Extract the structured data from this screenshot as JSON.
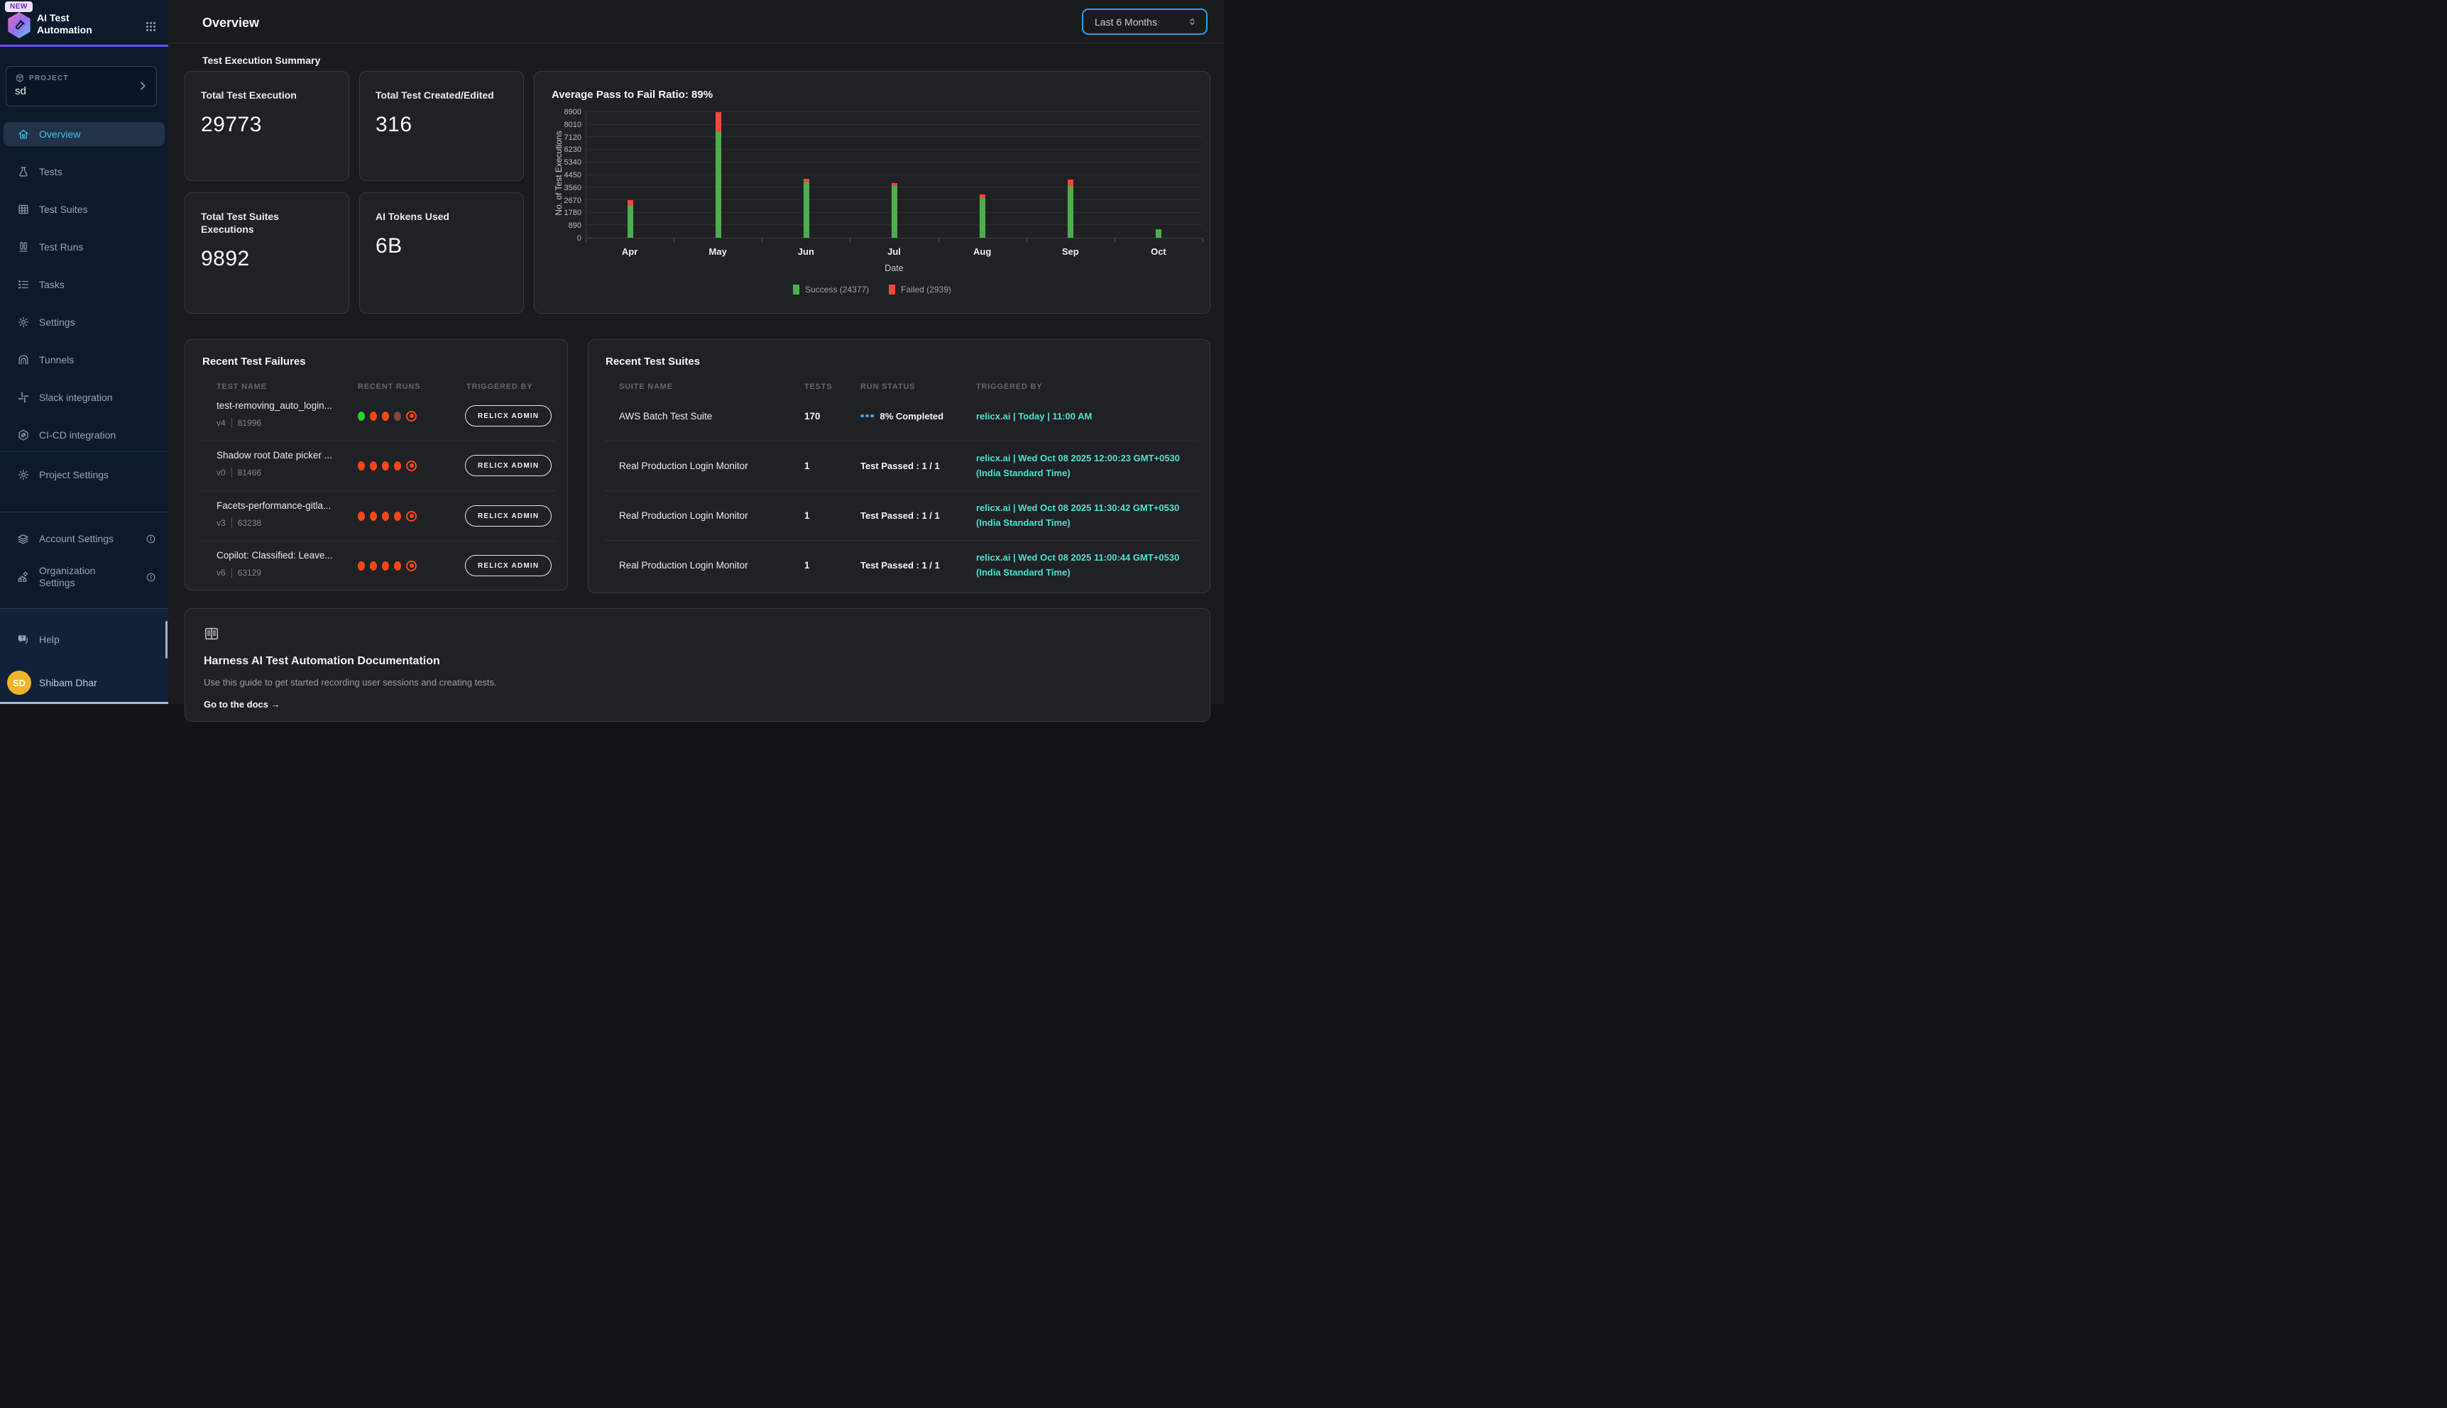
{
  "app": {
    "badge": "NEW",
    "title_line1": "AI Test",
    "title_line2": "Automation"
  },
  "project": {
    "label": "PROJECT",
    "name": "sd"
  },
  "nav": {
    "items": [
      {
        "label": "Overview",
        "active": true
      },
      {
        "label": "Tests"
      },
      {
        "label": "Test Suites"
      },
      {
        "label": "Test Runs"
      },
      {
        "label": "Tasks"
      },
      {
        "label": "Settings"
      },
      {
        "label": "Tunnels"
      },
      {
        "label": "Slack integration"
      },
      {
        "label": "CI-CD integration"
      }
    ],
    "secondary": [
      {
        "label": "Project Settings"
      }
    ],
    "account": [
      {
        "label": "Account Settings"
      },
      {
        "label": "Organization Settings"
      }
    ],
    "help": "Help"
  },
  "user": {
    "initials": "SD",
    "name": "Shibam Dhar"
  },
  "header": {
    "title": "Overview",
    "time_filter": "Last 6 Months",
    "section_title": "Test Execution Summary"
  },
  "summary_cards": [
    {
      "label": "Total Test Execution",
      "value": "29773"
    },
    {
      "label": "Total Test Created/Edited",
      "value": "316"
    },
    {
      "label": "Total Test Suites Executions",
      "value": "9892"
    },
    {
      "label": "AI Tokens Used",
      "value": "6B"
    }
  ],
  "chart_data": {
    "type": "bar",
    "stacked": true,
    "title": "Average Pass to Fail Ratio: 89%",
    "categories": [
      "Apr",
      "May",
      "Jun",
      "Jul",
      "Aug",
      "Sep",
      "Oct"
    ],
    "series": [
      {
        "name": "Success",
        "legend_label": "Success (24377)",
        "color": "#4cae4f",
        "values": [
          2250,
          7500,
          3900,
          3680,
          2820,
          3650,
          560
        ]
      },
      {
        "name": "Failed",
        "legend_label": "Failed (2939)",
        "color": "#f4483a",
        "values": [
          420,
          1400,
          250,
          180,
          230,
          450,
          40
        ]
      }
    ],
    "xlabel": "Date",
    "ylabel": "No. of Test Executions",
    "ylim": [
      0,
      8900
    ],
    "yticks": [
      0,
      890,
      1780,
      2670,
      3560,
      4450,
      5340,
      6230,
      7120,
      8010,
      8900
    ],
    "grid": true,
    "legend_position": "bottom"
  },
  "failures": {
    "title": "Recent Test Failures",
    "columns": [
      "TEST NAME",
      "RECENT RUNS",
      "TRIGGERED BY"
    ],
    "rows": [
      {
        "name": "test-removing_auto_login...",
        "version": "v4",
        "run_id": "81996",
        "runs": [
          "green",
          "red",
          "red",
          "muted",
          "ring"
        ],
        "triggered_by": "RELICX ADMIN"
      },
      {
        "name": "Shadow root Date picker ...",
        "version": "v0",
        "run_id": "81466",
        "runs": [
          "red",
          "red",
          "red",
          "red",
          "ring"
        ],
        "triggered_by": "RELICX ADMIN"
      },
      {
        "name": "Facets-performance-gitla...",
        "version": "v3",
        "run_id": "63238",
        "runs": [
          "red",
          "red",
          "red",
          "red",
          "ring"
        ],
        "triggered_by": "RELICX ADMIN"
      },
      {
        "name": "Copilot: Classified: Leave...",
        "version": "v6",
        "run_id": "63129",
        "runs": [
          "red",
          "red",
          "red",
          "red",
          "ring"
        ],
        "triggered_by": "RELICX ADMIN"
      }
    ]
  },
  "suites": {
    "title": "Recent Test Suites",
    "columns": [
      "SUITE NAME",
      "TESTS",
      "RUN STATUS",
      "TRIGGERED BY"
    ],
    "rows": [
      {
        "name": "AWS Batch Test Suite",
        "tests": "170",
        "status": "8% Completed",
        "status_type": "progress",
        "triggered_by": "relicx.ai | Today | 11:00 AM"
      },
      {
        "name": "Real Production Login Monitor",
        "tests": "1",
        "status": "Test Passed : 1 / 1",
        "status_type": "passed",
        "triggered_by": "relicx.ai | Wed Oct 08 2025 12:00:23 GMT+0530 (India Standard Time)"
      },
      {
        "name": "Real Production Login Monitor",
        "tests": "1",
        "status": "Test Passed : 1 / 1",
        "status_type": "passed",
        "triggered_by": "relicx.ai | Wed Oct 08 2025 11:30:42 GMT+0530 (India Standard Time)"
      },
      {
        "name": "Real Production Login Monitor",
        "tests": "1",
        "status": "Test Passed : 1 / 1",
        "status_type": "passed",
        "triggered_by": "relicx.ai | Wed Oct 08 2025 11:00:44 GMT+0530 (India Standard Time)"
      }
    ]
  },
  "docs": {
    "heading": "Harness AI Test Automation Documentation",
    "description": "Use this guide to get started recording user sessions and creating tests.",
    "link": "Go to the docs →"
  }
}
